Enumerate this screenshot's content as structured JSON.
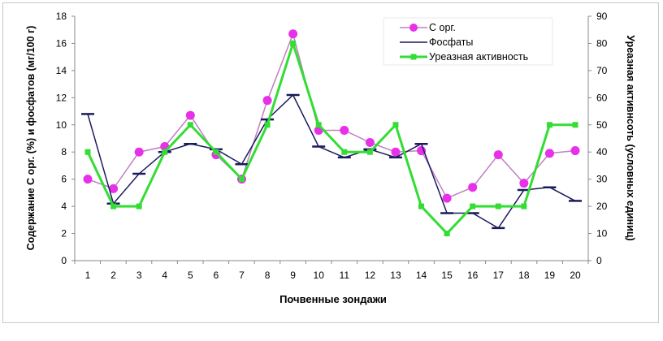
{
  "chart_data": {
    "type": "line",
    "xlabel": "Почвенные зондажи",
    "ylabel_left": "Содержание С орг. (%)  и фосфатов (мг/100 г)",
    "ylabel_right": "Уреазная активнсоть (условных единиц)",
    "ylim_left": [
      0,
      18
    ],
    "yticks_left": [
      0,
      2,
      4,
      6,
      8,
      10,
      12,
      14,
      16,
      18
    ],
    "ylim_right": [
      0,
      90
    ],
    "yticks_right": [
      0,
      10,
      20,
      30,
      40,
      50,
      60,
      70,
      80,
      90
    ],
    "x": [
      1,
      2,
      3,
      4,
      5,
      6,
      7,
      8,
      9,
      10,
      11,
      12,
      13,
      14,
      15,
      16,
      17,
      18,
      19,
      20
    ],
    "legend_position": "top-right",
    "series": [
      {
        "name": "С орг.",
        "axis": "left",
        "color": "#e830e8",
        "marker": "circle",
        "values": [
          6.0,
          5.3,
          8.0,
          8.4,
          10.7,
          7.8,
          6.0,
          11.8,
          16.7,
          9.6,
          9.6,
          8.7,
          8.0,
          8.1,
          4.6,
          5.4,
          7.8,
          5.7,
          7.9,
          8.1
        ]
      },
      {
        "name": "Фосфаты",
        "axis": "left",
        "color": "#1a1a5e",
        "marker": "dash",
        "values": [
          10.8,
          4.2,
          6.4,
          8.0,
          8.6,
          8.2,
          7.1,
          10.4,
          12.2,
          8.4,
          7.6,
          8.2,
          7.6,
          8.6,
          3.5,
          3.5,
          2.4,
          5.2,
          5.4,
          4.4
        ]
      },
      {
        "name": "Уреазная активность",
        "axis": "right",
        "color": "#33dd33",
        "marker": "square",
        "values": [
          40,
          20,
          20,
          40,
          50,
          40,
          30,
          50,
          80,
          50,
          40,
          40,
          50,
          20,
          10,
          20,
          20,
          20,
          50,
          50
        ]
      }
    ]
  }
}
